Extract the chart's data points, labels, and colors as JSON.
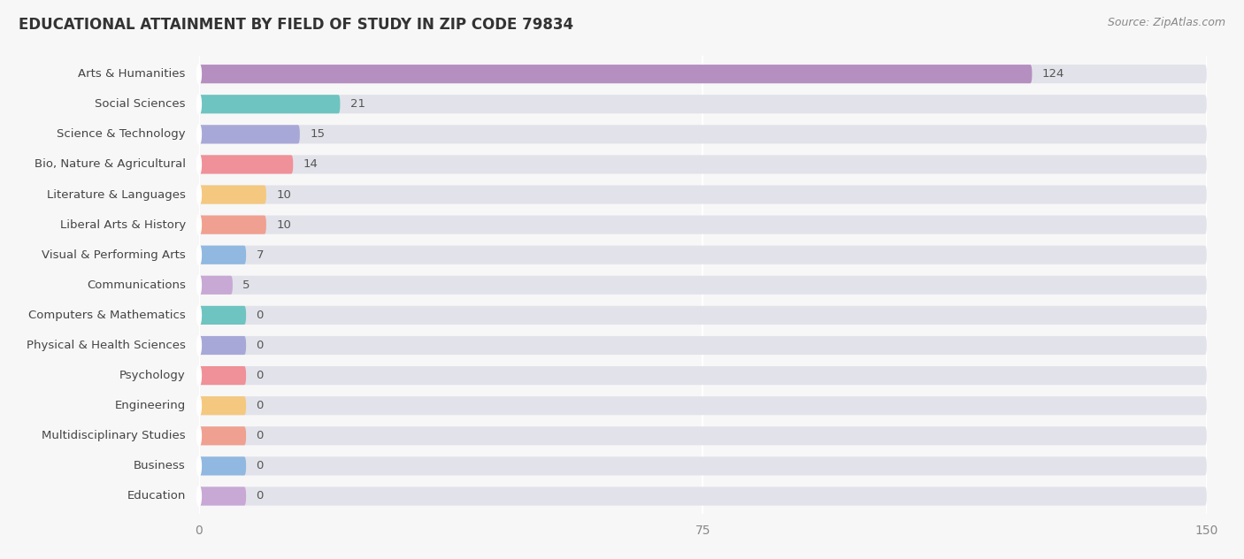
{
  "title": "EDUCATIONAL ATTAINMENT BY FIELD OF STUDY IN ZIP CODE 79834",
  "source": "Source: ZipAtlas.com",
  "categories": [
    "Arts & Humanities",
    "Social Sciences",
    "Science & Technology",
    "Bio, Nature & Agricultural",
    "Literature & Languages",
    "Liberal Arts & History",
    "Visual & Performing Arts",
    "Communications",
    "Computers & Mathematics",
    "Physical & Health Sciences",
    "Psychology",
    "Engineering",
    "Multidisciplinary Studies",
    "Business",
    "Education"
  ],
  "values": [
    124,
    21,
    15,
    14,
    10,
    10,
    7,
    5,
    0,
    0,
    0,
    0,
    0,
    0,
    0
  ],
  "bar_colors": [
    "#b48fc0",
    "#6ec4c0",
    "#a8a8d8",
    "#f09098",
    "#f5c880",
    "#f0a090",
    "#90b8e0",
    "#c8a8d4",
    "#6ec4c0",
    "#a8a8d8",
    "#f09098",
    "#f5c880",
    "#f0a090",
    "#90b8e0",
    "#c8a8d4"
  ],
  "xlim": [
    0,
    150
  ],
  "xticks": [
    0,
    75,
    150
  ],
  "background_color": "#f7f7f7",
  "bar_bg_color": "#e2e2ea",
  "title_fontsize": 12,
  "tick_fontsize": 10,
  "label_fontsize": 9.5,
  "value_fontsize": 9.5,
  "zero_bar_width": 7,
  "bar_height": 0.62
}
